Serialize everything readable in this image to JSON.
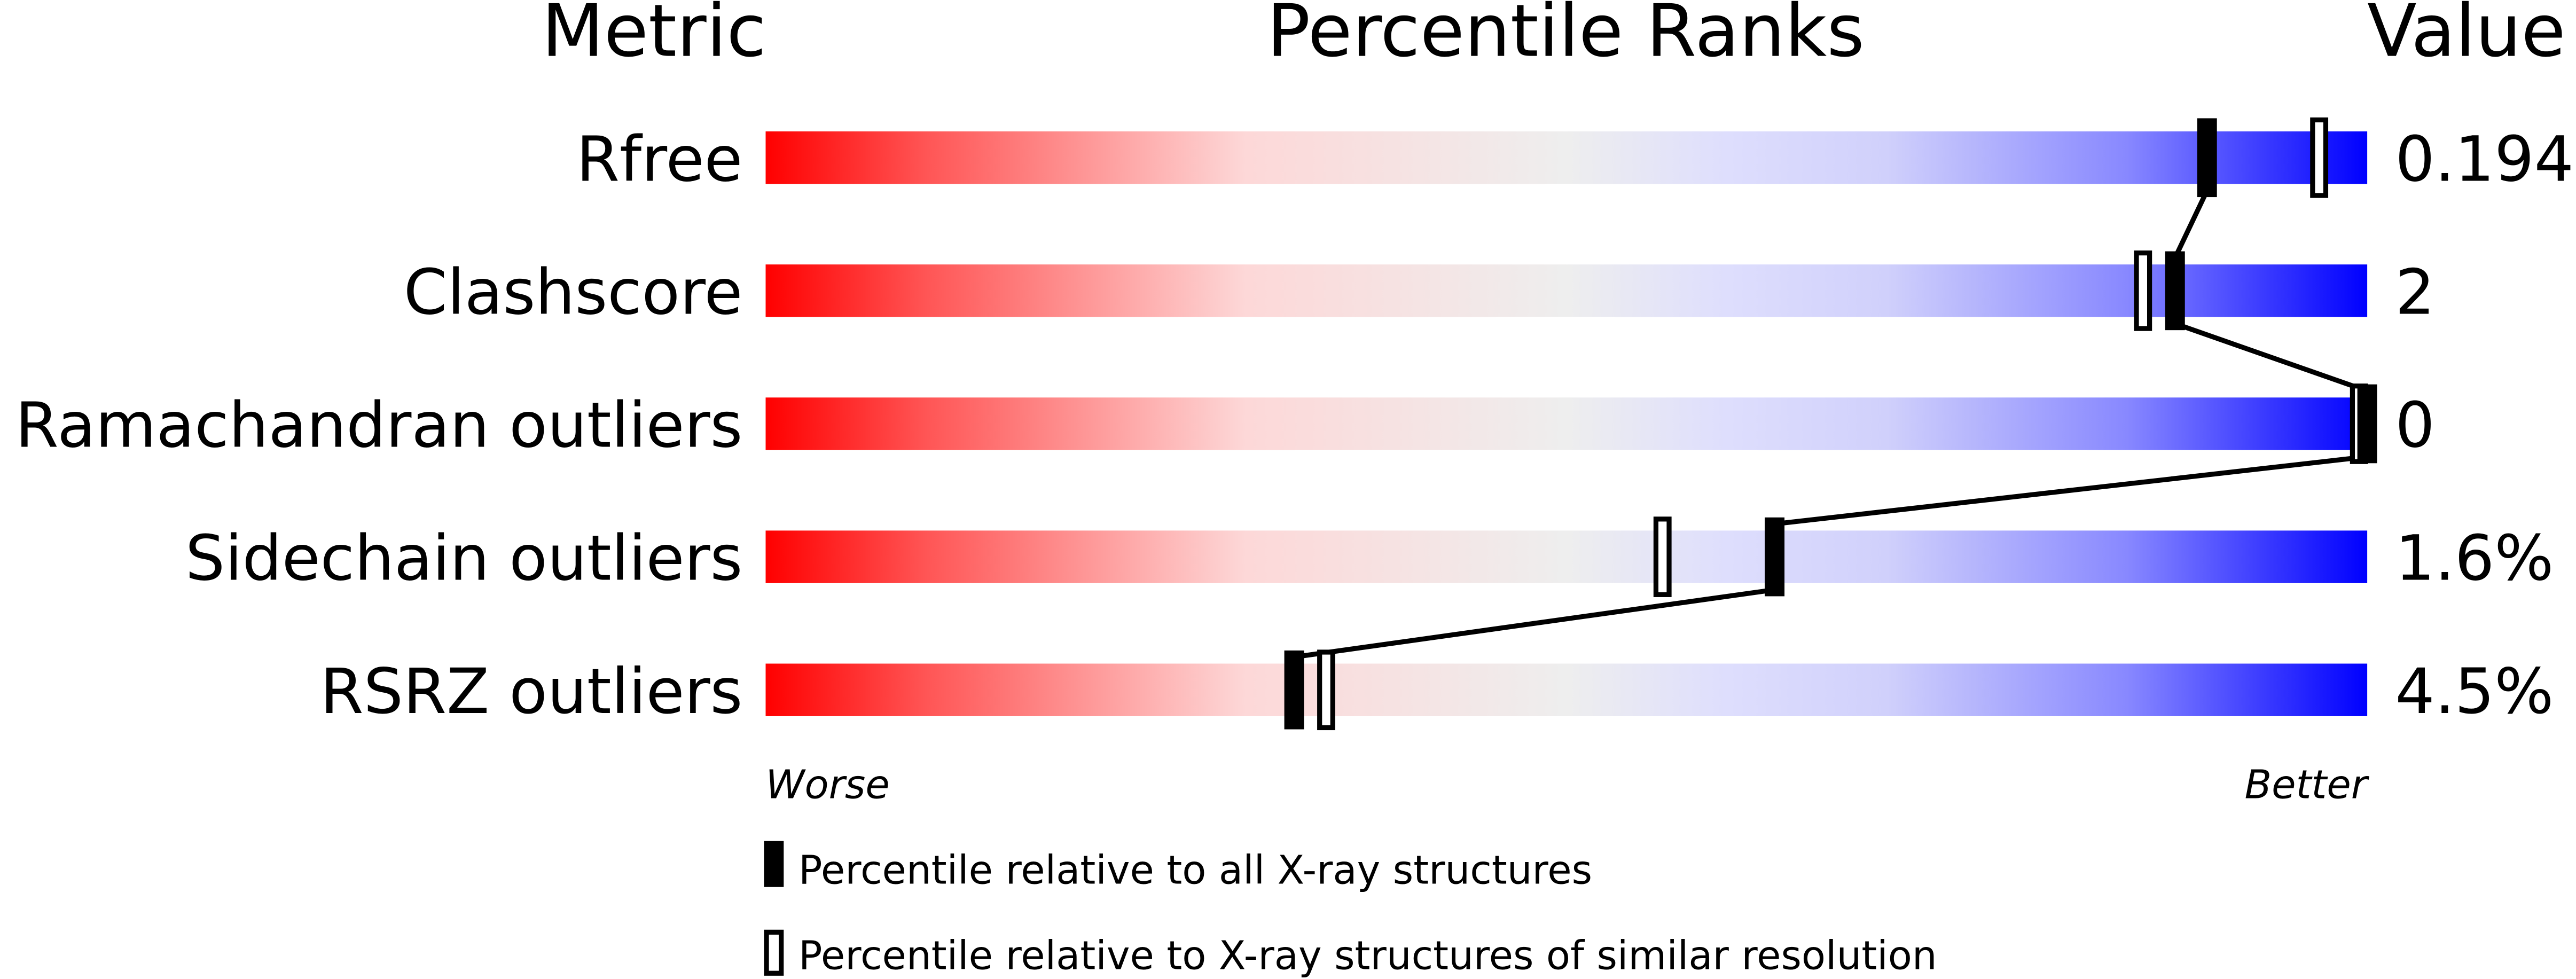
{
  "chart_data": {
    "type": "percentile-slider",
    "headers": {
      "metric": "Metric",
      "ranks": "Percentile Ranks",
      "value": "Value"
    },
    "axis": {
      "left": "Worse",
      "right": "Better",
      "range": [
        0,
        100
      ]
    },
    "metrics": [
      {
        "name": "Rfree",
        "value": "0.194",
        "percentile_all": 90,
        "percentile_similar": 97
      },
      {
        "name": "Clashscore",
        "value": "2",
        "percentile_all": 88,
        "percentile_similar": 86
      },
      {
        "name": "Ramachandran outliers",
        "value": "0",
        "percentile_all": 100,
        "percentile_similar": 100
      },
      {
        "name": "Sidechain outliers",
        "value": "1.6%",
        "percentile_all": 63,
        "percentile_similar": 56
      },
      {
        "name": "RSRZ outliers",
        "value": "4.5%",
        "percentile_all": 33,
        "percentile_similar": 35
      }
    ],
    "legend": {
      "all": "Percentile relative to all X-ray structures",
      "similar": "Percentile relative to X-ray structures of similar resolution"
    },
    "colors": {
      "worse": "#ff0000",
      "mid": "#eeeeee",
      "better": "#0000ff",
      "marker": "#000000"
    }
  }
}
